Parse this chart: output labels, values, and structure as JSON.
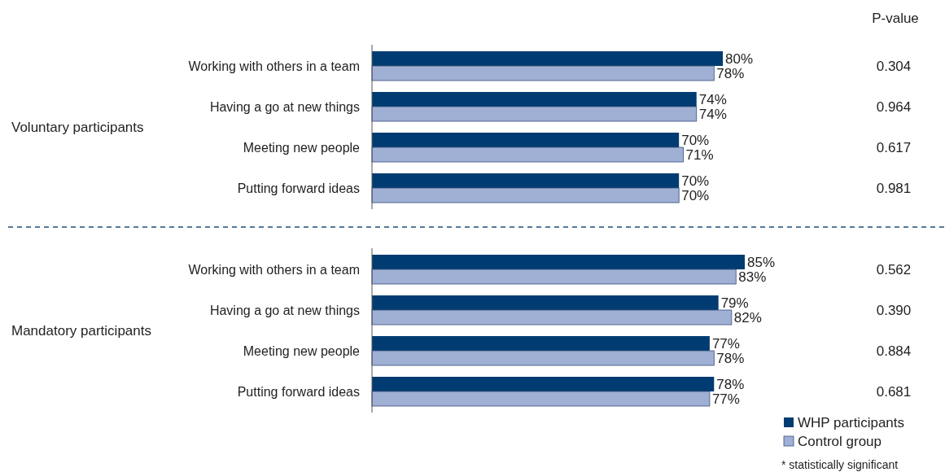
{
  "chart_data": [
    {
      "type": "bar",
      "orientation": "horizontal",
      "ylabel": "Voluntary participants",
      "categories": [
        "Working with others in a team",
        "Having a go at new things",
        "Meeting new people",
        "Putting forward ideas"
      ],
      "series": [
        {
          "color": "#003c71",
          "values": [
            80,
            74,
            70,
            70
          ],
          "value_labels": [
            "80%",
            "74%",
            "70%",
            "70%"
          ]
        },
        {
          "color": "#9fb0d4",
          "values": [
            78,
            74,
            71,
            70
          ],
          "value_labels": [
            "78%",
            "74%",
            "71%",
            "70%"
          ]
        }
      ],
      "annotations": [
        "P-value",
        "0.304",
        "0.964",
        "0.617",
        "0.981"
      ],
      "legend": false,
      "relative": false
    },
    {
      "type": "bar",
      "orientation": "horizontal",
      "ylabel": "Mandatory participants",
      "categories": [
        "Working with others in a team",
        "Having a go at new things",
        "Meeting new people",
        "Putting forward ideas"
      ],
      "series": [
        {
          "name": "WHP participants",
          "color": "#003c71",
          "values": [
            85,
            79,
            77,
            78
          ],
          "value_labels": [
            "85%",
            "79%",
            "77%",
            "78%"
          ]
        },
        {
          "name": "Control group",
          "color": "#9fb0d4",
          "values": [
            83,
            82,
            78,
            77
          ],
          "value_labels": [
            "83%",
            "82%",
            "78%",
            "77%"
          ]
        }
      ],
      "annotations": [
        "0.562",
        "0.390",
        "0.884",
        "0.681",
        "* statistically significant"
      ],
      "legend": "bottom right",
      "relative": false
    }
  ]
}
